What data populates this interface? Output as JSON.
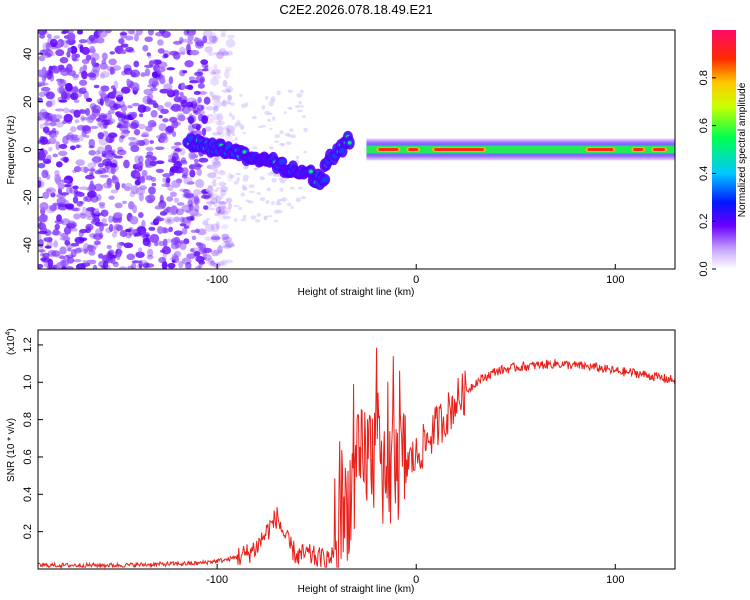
{
  "title": "C2E2.2026.078.18.49.E21",
  "chart_data": [
    {
      "type": "heatmap",
      "xlabel": "Height of straight line (km)",
      "ylabel": "Frequency (Hz)",
      "xlim": [
        -190,
        130
      ],
      "ylim": [
        -50,
        50
      ],
      "xticks": [
        -100,
        0,
        100
      ],
      "yticks": [
        -40,
        -20,
        0,
        20,
        40
      ],
      "colorbar": {
        "label": "Normalized spectral amplitude",
        "range": [
          0.0,
          1.0
        ],
        "ticks": [
          0.0,
          0.2,
          0.4,
          0.6,
          0.8
        ]
      },
      "features": [
        {
          "name": "noise",
          "x_range": [
            -190,
            -105
          ],
          "amplitude": 0.15
        },
        {
          "name": "scattered weak",
          "x_range": [
            -105,
            -55
          ],
          "amplitude": 0.05
        },
        {
          "name": "descending echo",
          "x": [
            -115,
            -95,
            -75,
            -55,
            -45
          ],
          "freq": [
            3,
            0,
            -5,
            -10,
            -14
          ],
          "amplitude": 0.45
        },
        {
          "name": "rising echo",
          "x": [
            -46,
            -38,
            -33
          ],
          "freq": [
            -6,
            0,
            5
          ],
          "amplitude": 0.4
        },
        {
          "name": "steady line",
          "x_range": [
            -25,
            130
          ],
          "freq": 0,
          "amplitude": 0.9
        }
      ]
    },
    {
      "type": "line",
      "xlabel": "Height of straight line (km)",
      "ylabel": "SNR (10 * v/v)",
      "scale_label": "(x10",
      "scale_exp": "4",
      "xlim": [
        -190,
        130
      ],
      "ylim": [
        0,
        1.28
      ],
      "xticks": [
        -100,
        0,
        100
      ],
      "yticks": [
        0.2,
        0.4,
        0.6,
        0.8,
        1.0,
        1.2
      ],
      "ytick_labels": [
        "0.2",
        "0.4",
        "0.6",
        "0.8",
        "1.0",
        "1.2"
      ],
      "series": [
        {
          "name": "SNR",
          "color": "#e8201a",
          "x": [
            -190,
            -150,
            -110,
            -95,
            -85,
            -80,
            -75,
            -70,
            -65,
            -60,
            -55,
            -50,
            -45,
            -40,
            -35,
            -30,
            -25,
            -20,
            -15,
            -10,
            -5,
            0,
            5,
            10,
            15,
            20,
            30,
            40,
            50,
            60,
            70,
            80,
            90,
            100,
            110,
            120,
            130
          ],
          "y": [
            0.02,
            0.02,
            0.03,
            0.05,
            0.08,
            0.12,
            0.2,
            0.28,
            0.15,
            0.07,
            0.08,
            0.06,
            0.05,
            0.1,
            0.35,
            0.5,
            0.62,
            0.6,
            0.52,
            0.55,
            0.57,
            0.6,
            0.68,
            0.76,
            0.82,
            0.9,
            1.0,
            1.06,
            1.08,
            1.09,
            1.1,
            1.09,
            1.08,
            1.06,
            1.05,
            1.03,
            1.01
          ]
        }
      ]
    }
  ]
}
